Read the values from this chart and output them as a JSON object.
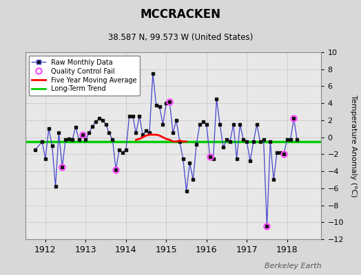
{
  "title": "MCCRACKEN",
  "subtitle": "38.587 N, 99.573 W (United States)",
  "ylabel": "Temperature Anomaly (°C)",
  "watermark": "Berkeley Earth",
  "background_color": "#d8d8d8",
  "plot_bg_color": "#e8e8e8",
  "ylim": [
    -12,
    10
  ],
  "yticks": [
    -12,
    -10,
    -8,
    -6,
    -4,
    -2,
    0,
    2,
    4,
    6,
    8,
    10
  ],
  "xlim": [
    1911.5,
    1918.85
  ],
  "long_term_trend_y": -0.5,
  "raw_data": [
    [
      1911.75,
      -1.5
    ],
    [
      1911.917,
      -0.5
    ],
    [
      1912.0,
      -2.5
    ],
    [
      1912.083,
      1.0
    ],
    [
      1912.167,
      -1.0
    ],
    [
      1912.25,
      -5.8
    ],
    [
      1912.333,
      0.5
    ],
    [
      1912.417,
      -3.5
    ],
    [
      1912.5,
      -0.3
    ],
    [
      1912.583,
      -0.2
    ],
    [
      1912.667,
      -0.3
    ],
    [
      1912.75,
      1.2
    ],
    [
      1912.833,
      -0.3
    ],
    [
      1912.917,
      0.3
    ],
    [
      1913.0,
      -0.3
    ],
    [
      1913.083,
      0.5
    ],
    [
      1913.167,
      1.3
    ],
    [
      1913.25,
      1.8
    ],
    [
      1913.333,
      2.2
    ],
    [
      1913.417,
      2.0
    ],
    [
      1913.5,
      1.5
    ],
    [
      1913.583,
      0.5
    ],
    [
      1913.667,
      -0.3
    ],
    [
      1913.75,
      -3.8
    ],
    [
      1913.833,
      -1.5
    ],
    [
      1913.917,
      -1.8
    ],
    [
      1914.0,
      -1.5
    ],
    [
      1914.083,
      2.5
    ],
    [
      1914.167,
      2.5
    ],
    [
      1914.25,
      0.5
    ],
    [
      1914.333,
      2.5
    ],
    [
      1914.417,
      0.3
    ],
    [
      1914.5,
      0.8
    ],
    [
      1914.583,
      0.5
    ],
    [
      1914.667,
      7.5
    ],
    [
      1914.75,
      3.8
    ],
    [
      1914.833,
      3.6
    ],
    [
      1914.917,
      1.5
    ],
    [
      1915.0,
      4.0
    ],
    [
      1915.083,
      4.2
    ],
    [
      1915.167,
      0.5
    ],
    [
      1915.25,
      2.0
    ],
    [
      1915.333,
      -0.5
    ],
    [
      1915.417,
      -2.5
    ],
    [
      1915.5,
      -6.3
    ],
    [
      1915.583,
      -3.0
    ],
    [
      1915.667,
      -5.0
    ],
    [
      1915.75,
      -0.8
    ],
    [
      1915.833,
      1.5
    ],
    [
      1915.917,
      1.8
    ],
    [
      1916.0,
      1.5
    ],
    [
      1916.083,
      -2.3
    ],
    [
      1916.167,
      -2.5
    ],
    [
      1916.25,
      4.5
    ],
    [
      1916.333,
      1.5
    ],
    [
      1916.417,
      -1.2
    ],
    [
      1916.5,
      -0.3
    ],
    [
      1916.583,
      -0.5
    ],
    [
      1916.667,
      1.5
    ],
    [
      1916.75,
      -2.5
    ],
    [
      1916.833,
      1.5
    ],
    [
      1916.917,
      -0.3
    ],
    [
      1917.0,
      -0.5
    ],
    [
      1917.083,
      -2.8
    ],
    [
      1917.167,
      -0.5
    ],
    [
      1917.25,
      1.5
    ],
    [
      1917.333,
      -0.5
    ],
    [
      1917.417,
      -0.3
    ],
    [
      1917.5,
      -10.5
    ],
    [
      1917.583,
      -0.5
    ],
    [
      1917.667,
      -5.0
    ],
    [
      1917.75,
      -1.8
    ],
    [
      1917.833,
      -1.8
    ],
    [
      1917.917,
      -2.0
    ],
    [
      1918.0,
      -0.3
    ],
    [
      1918.083,
      -0.3
    ],
    [
      1918.167,
      2.2
    ],
    [
      1918.25,
      -0.3
    ]
  ],
  "qc_fail": [
    [
      1912.417,
      -3.5
    ],
    [
      1912.917,
      0.3
    ],
    [
      1913.75,
      -3.8
    ],
    [
      1915.083,
      4.2
    ],
    [
      1916.083,
      -2.3
    ],
    [
      1917.5,
      -10.5
    ],
    [
      1917.917,
      -2.0
    ],
    [
      1918.167,
      2.2
    ]
  ],
  "moving_avg": [
    [
      1914.25,
      -0.3
    ],
    [
      1914.333,
      -0.2
    ],
    [
      1914.417,
      0.0
    ],
    [
      1914.5,
      0.2
    ],
    [
      1914.583,
      0.3
    ],
    [
      1914.667,
      0.3
    ],
    [
      1914.75,
      0.3
    ],
    [
      1914.833,
      0.2
    ],
    [
      1914.917,
      0.0
    ],
    [
      1915.0,
      -0.2
    ],
    [
      1915.083,
      -0.3
    ],
    [
      1915.167,
      -0.5
    ],
    [
      1915.25,
      -0.5
    ],
    [
      1915.333,
      -0.4
    ],
    [
      1915.417,
      -0.5
    ],
    [
      1915.5,
      -0.5
    ]
  ],
  "line_color": "#4444cc",
  "marker_color": "#111111",
  "qc_color": "#ff44ff",
  "moving_avg_color": "#ff0000",
  "trend_color": "#00cc00",
  "grid_color": "#aaaaaa",
  "xticks": [
    1912,
    1913,
    1914,
    1915,
    1916,
    1917,
    1918
  ]
}
